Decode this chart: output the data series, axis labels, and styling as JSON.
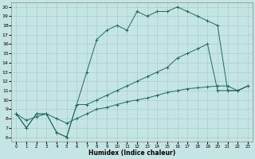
{
  "xlabel": "Humidex (Indice chaleur)",
  "xlim": [
    -0.5,
    23.5
  ],
  "ylim": [
    5.5,
    20.5
  ],
  "yticks": [
    6,
    7,
    8,
    9,
    10,
    11,
    12,
    13,
    14,
    15,
    16,
    17,
    18,
    19,
    20
  ],
  "xticks": [
    0,
    1,
    2,
    3,
    4,
    5,
    6,
    7,
    8,
    9,
    10,
    11,
    12,
    13,
    14,
    15,
    16,
    17,
    18,
    19,
    20,
    21,
    22,
    23
  ],
  "bg_color": "#c5e5e5",
  "line_color": "#1e6b5e",
  "grid_color": "#aacece",
  "line1_x": [
    0,
    1,
    2,
    3,
    4,
    5,
    6,
    7,
    8,
    9,
    10,
    11,
    12,
    13,
    14,
    15,
    16,
    17,
    18,
    19,
    20,
    21,
    22,
    23
  ],
  "line1_y": [
    8.5,
    7.0,
    8.5,
    8.5,
    6.5,
    6.0,
    9.5,
    13.0,
    16.5,
    17.5,
    18.0,
    17.5,
    19.5,
    19.0,
    19.5,
    19.5,
    20.0,
    19.5,
    19.0,
    18.5,
    18.0,
    11.0,
    11.0,
    11.5
  ],
  "line2_x": [
    0,
    1,
    2,
    3,
    4,
    5,
    6,
    7,
    8,
    9,
    10,
    11,
    12,
    13,
    14,
    15,
    16,
    17,
    18,
    19,
    20,
    21,
    22,
    23
  ],
  "line2_y": [
    8.5,
    7.0,
    8.5,
    8.5,
    6.5,
    6.0,
    9.5,
    9.5,
    10.0,
    10.5,
    11.0,
    11.5,
    12.0,
    12.5,
    13.0,
    13.5,
    14.5,
    15.0,
    15.5,
    16.0,
    11.0,
    11.0,
    11.0,
    11.5
  ],
  "line3_x": [
    0,
    1,
    2,
    3,
    4,
    5,
    6,
    7,
    8,
    9,
    10,
    11,
    12,
    13,
    14,
    15,
    16,
    17,
    18,
    19,
    20,
    21,
    22,
    23
  ],
  "line3_y": [
    8.5,
    7.8,
    8.2,
    8.5,
    8.0,
    7.5,
    8.0,
    8.5,
    9.0,
    9.2,
    9.5,
    9.8,
    10.0,
    10.2,
    10.5,
    10.8,
    11.0,
    11.2,
    11.3,
    11.4,
    11.5,
    11.5,
    11.0,
    11.5
  ]
}
